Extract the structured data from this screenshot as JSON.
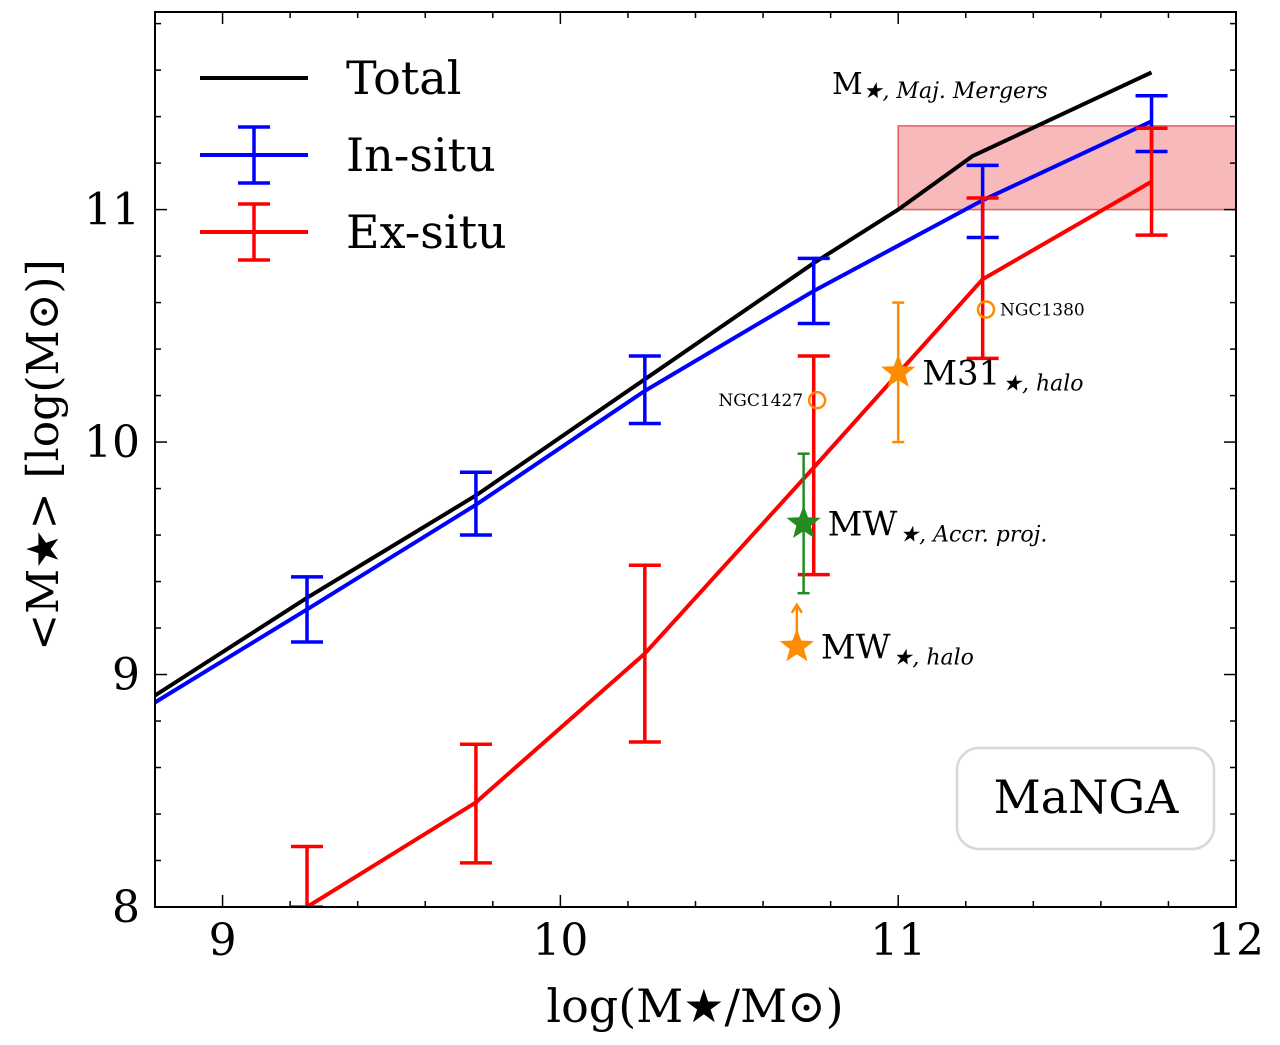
{
  "chart_data": {
    "type": "line",
    "xlabel": "log(M★/M⊙)",
    "ylabel": "<M★> [log(M⊙)]",
    "xlim": [
      8.8,
      12
    ],
    "ylim": [
      8,
      11.85
    ],
    "xticks": [
      "9",
      "10",
      "11",
      "12"
    ],
    "yticks": [
      "8",
      "9",
      "10",
      "11"
    ],
    "legend_position": "top-left",
    "grid": false,
    "series": [
      {
        "name": "Total",
        "color": "#000000",
        "points": [
          [
            8.8,
            8.91
          ],
          [
            9.25,
            9.33
          ],
          [
            9.75,
            9.77
          ],
          [
            10.25,
            10.27
          ],
          [
            10.75,
            10.77
          ],
          [
            11.0,
            11.0
          ],
          [
            11.22,
            11.23
          ],
          [
            11.75,
            11.59
          ]
        ]
      },
      {
        "name": "In-situ",
        "color": "#0000ff",
        "points": [
          [
            8.8,
            8.88
          ],
          [
            9.25,
            9.28
          ],
          [
            9.75,
            9.73
          ],
          [
            10.25,
            10.22
          ],
          [
            10.75,
            10.65
          ],
          [
            11.25,
            11.04
          ],
          [
            11.75,
            11.38
          ]
        ],
        "errors": [
          [
            9.25,
            9.14,
            9.42
          ],
          [
            9.75,
            9.6,
            9.87
          ],
          [
            10.25,
            10.08,
            10.37
          ],
          [
            10.75,
            10.51,
            10.79
          ],
          [
            11.25,
            10.88,
            11.19
          ],
          [
            11.75,
            11.25,
            11.49
          ]
        ]
      },
      {
        "name": "Ex-situ",
        "color": "#ff0000",
        "points": [
          [
            9.25,
            8.0
          ],
          [
            9.75,
            8.45
          ],
          [
            10.25,
            9.09
          ],
          [
            10.75,
            9.89
          ],
          [
            11.25,
            10.7
          ],
          [
            11.75,
            11.12
          ]
        ],
        "errors": [
          [
            9.25,
            8.0,
            8.26
          ],
          [
            9.75,
            8.19,
            8.7
          ],
          [
            10.25,
            8.71,
            9.47
          ],
          [
            10.75,
            9.43,
            10.37
          ],
          [
            11.25,
            10.36,
            11.05
          ],
          [
            11.75,
            10.89,
            11.35
          ]
        ]
      }
    ],
    "region": {
      "label": "M★, Maj. Mergers",
      "x": [
        11.0,
        12.0
      ],
      "y": [
        11.0,
        11.36
      ],
      "color": "#f08080"
    },
    "observations": [
      {
        "label_main": "MW",
        "label_sub": "★, Accr. proj.",
        "x": 10.72,
        "y": 9.65,
        "yerr": [
          9.35,
          9.95
        ],
        "marker": "star",
        "color": "#228b22",
        "arrow_up": false
      },
      {
        "label_main": "MW",
        "label_sub": "★, halo",
        "x": 10.7,
        "y": 9.12,
        "yerr": [
          9.12,
          9.3
        ],
        "marker": "star",
        "color": "#ff8c00",
        "arrow_up": true
      },
      {
        "label_main": "M31",
        "label_sub": "★, halo",
        "x": 11.0,
        "y": 10.3,
        "yerr": [
          10.0,
          10.6
        ],
        "marker": "star",
        "color": "#ff8c00",
        "arrow_up": false
      },
      {
        "label_main": "NGC1427",
        "label_sub": "",
        "x": 10.76,
        "y": 10.18,
        "yerr": null,
        "marker": "circle",
        "color": "#ff8c00",
        "arrow_up": false
      },
      {
        "label_main": "NGC1380",
        "label_sub": "",
        "x": 11.26,
        "y": 10.57,
        "yerr": null,
        "marker": "circle",
        "color": "#ff8c00",
        "arrow_up": false
      }
    ],
    "annotation_box": "MaNGA"
  }
}
